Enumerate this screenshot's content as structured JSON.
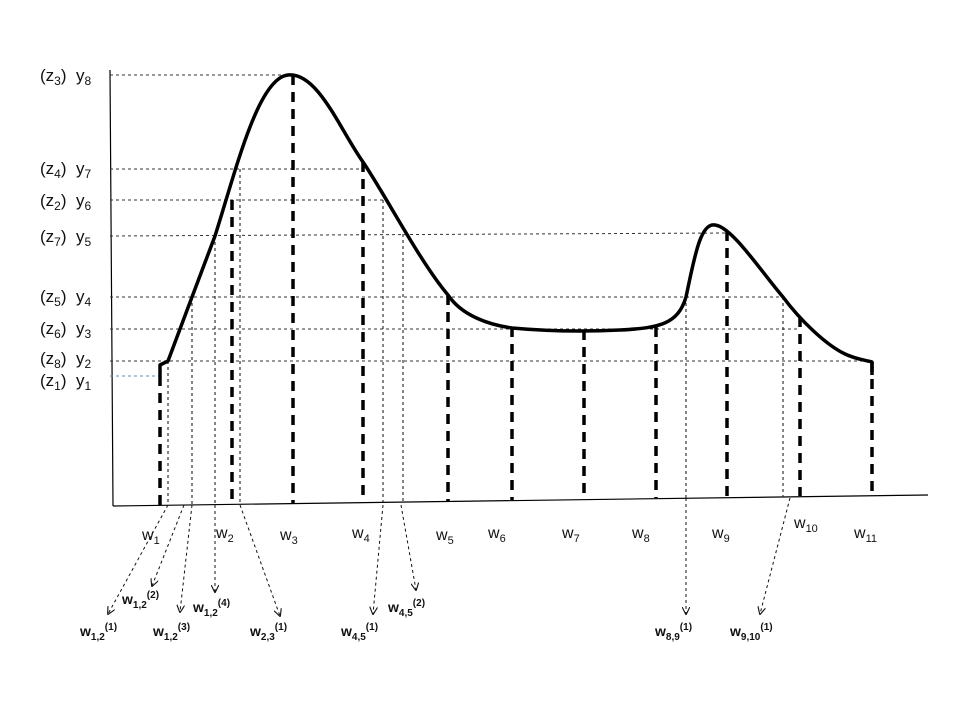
{
  "y_labels": [
    {
      "z": "3",
      "y": "8"
    },
    {
      "z": "4",
      "y": "7"
    },
    {
      "z": "2",
      "y": "6"
    },
    {
      "z": "7",
      "y": "5"
    },
    {
      "z": "5",
      "y": "4"
    },
    {
      "z": "6",
      "y": "3"
    },
    {
      "z": "8",
      "y": "2"
    },
    {
      "z": "1",
      "y": "1"
    }
  ],
  "w_labels": [
    "1",
    "2",
    "3",
    "4",
    "5",
    "6",
    "7",
    "8",
    "9",
    "10",
    "11"
  ],
  "bottom_labels": [
    {
      "sub": "1,2",
      "sup": "(1)"
    },
    {
      "sub": "1,2",
      "sup": "(2)"
    },
    {
      "sub": "1,2",
      "sup": "(3)"
    },
    {
      "sub": "1,2",
      "sup": "(4)"
    },
    {
      "sub": "2,3",
      "sup": "(1)"
    },
    {
      "sub": "4,5",
      "sup": "(1)"
    },
    {
      "sub": "4,5",
      "sup": "(2)"
    },
    {
      "sub": "8,9",
      "sup": "(1)"
    },
    {
      "sub": "9,10",
      "sup": "(1)"
    }
  ],
  "colors": {
    "line": "#000000",
    "text": "#111111",
    "guide": "#333333"
  }
}
